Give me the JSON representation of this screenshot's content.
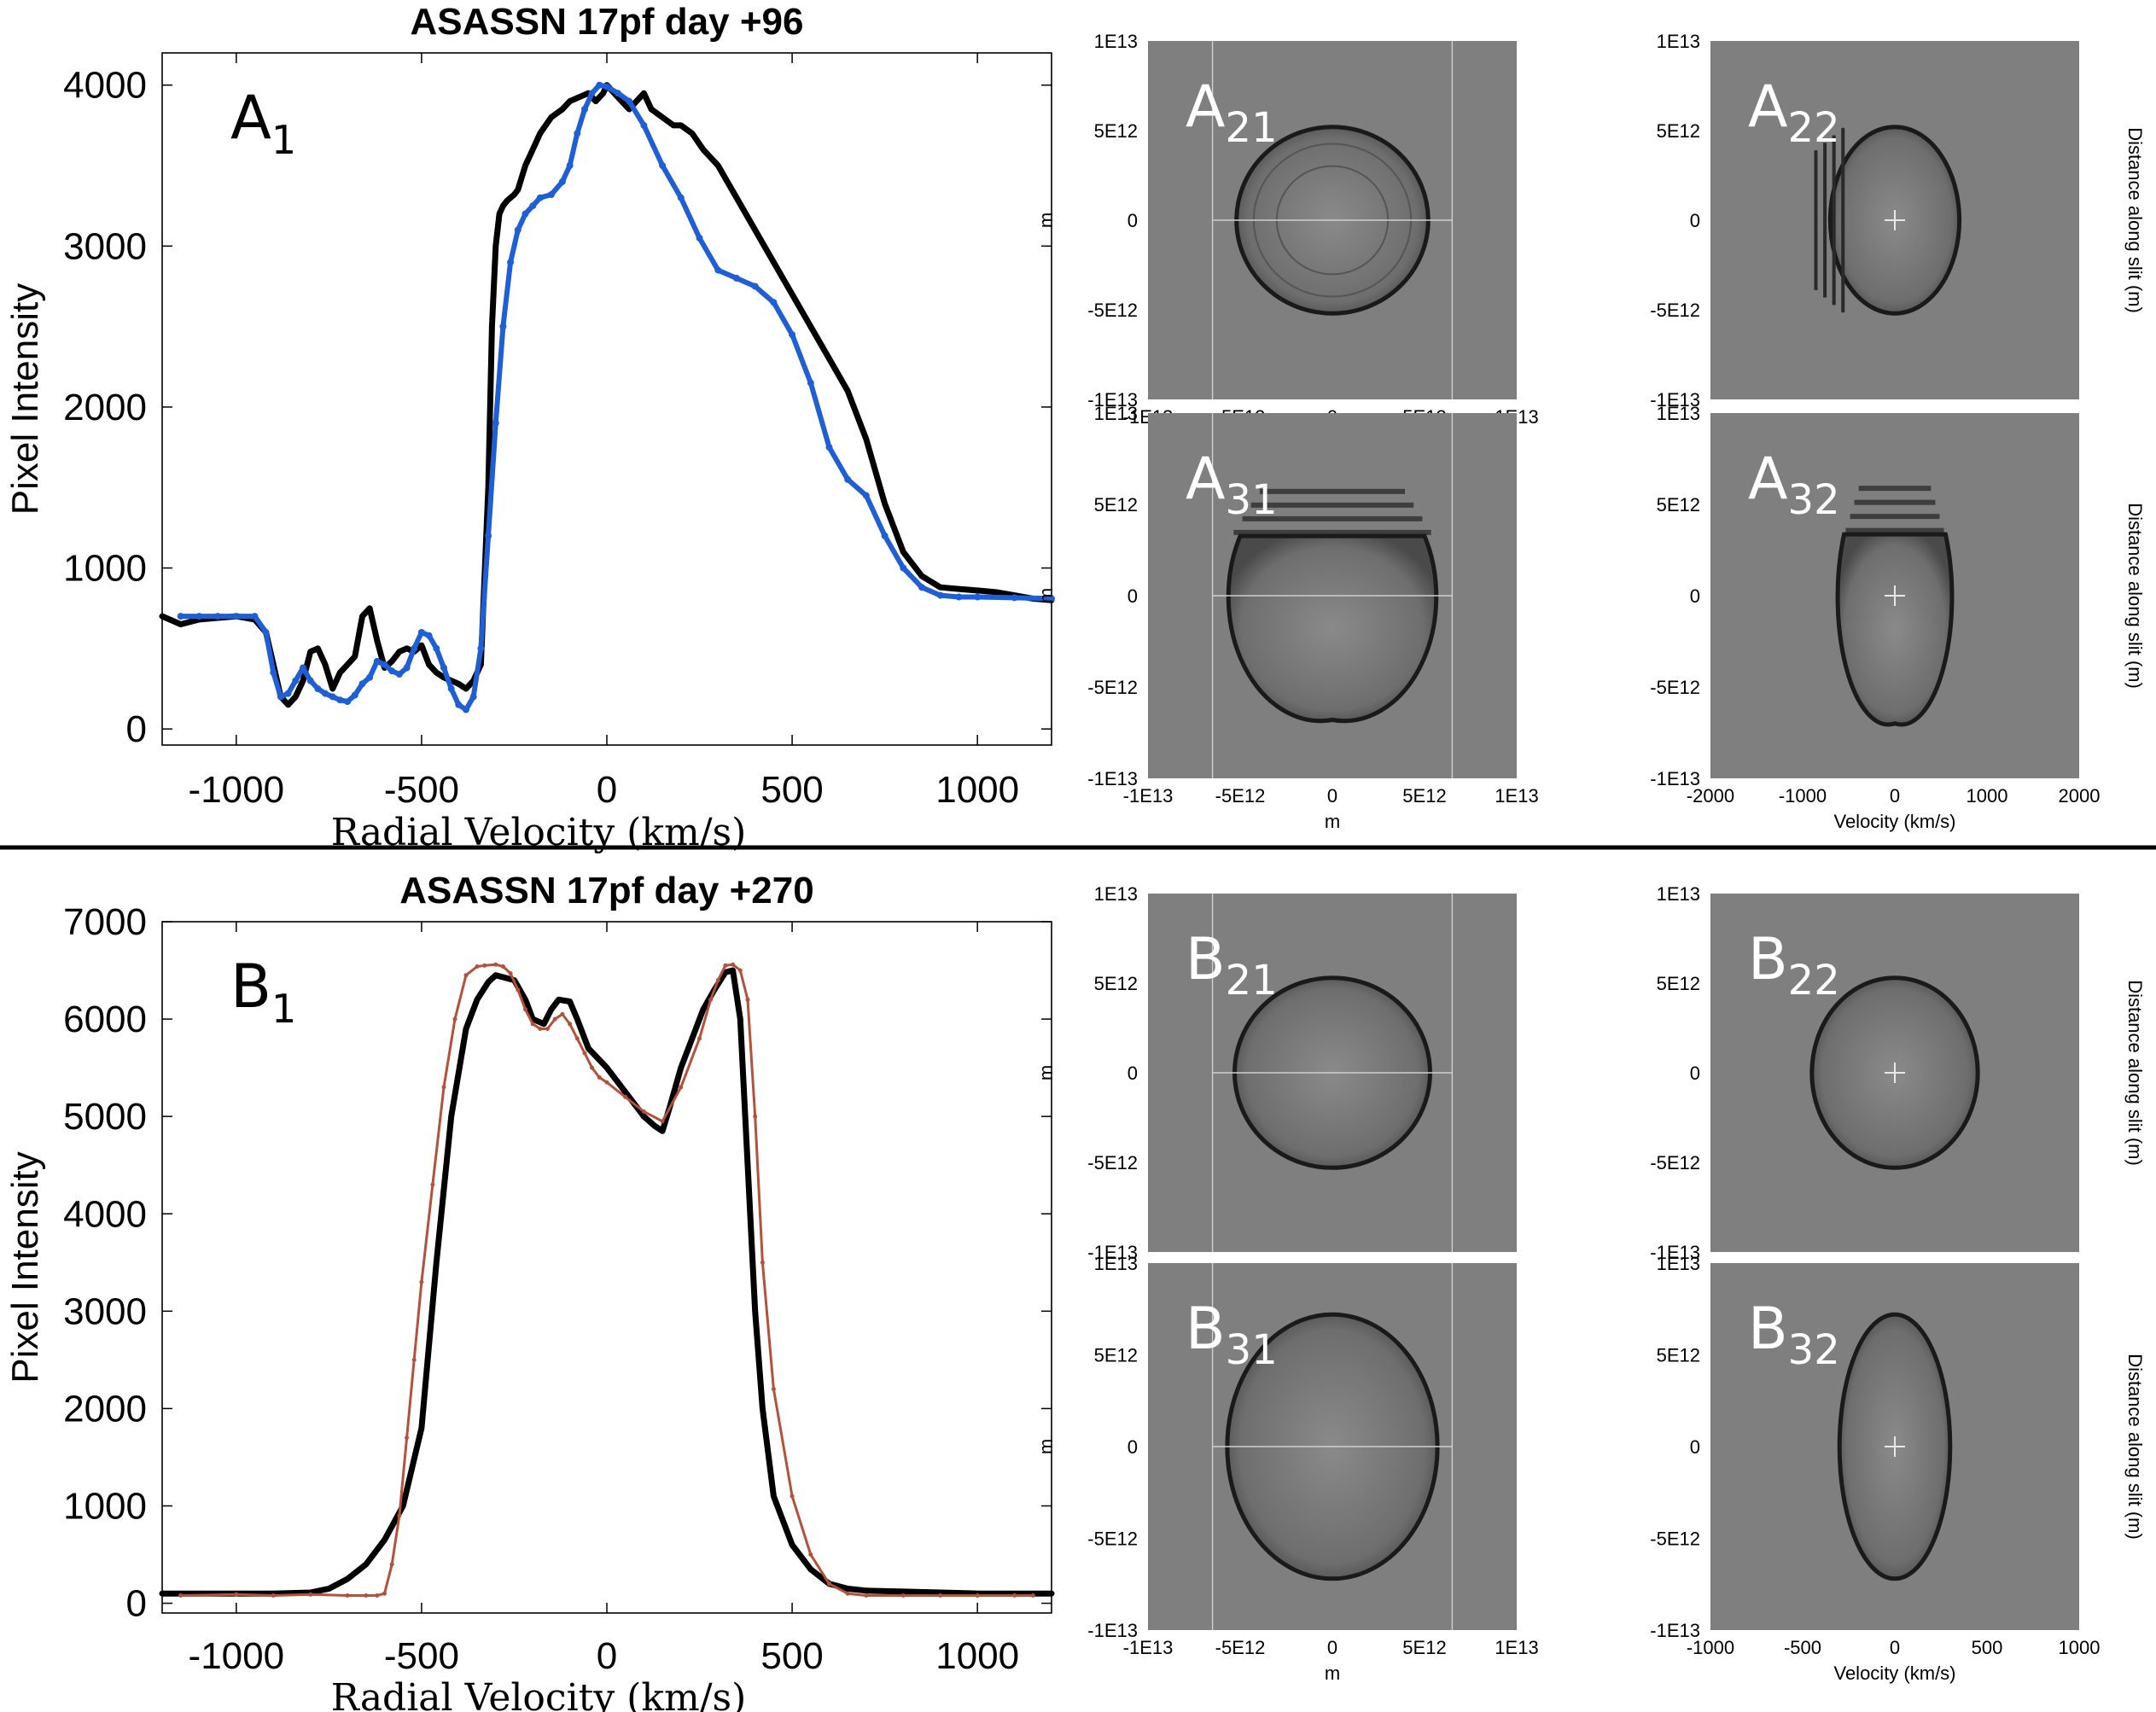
{
  "colors": {
    "black": "#000000",
    "blue": "#1f5fd6",
    "red": "#b5503a",
    "panel_gray": "#7f7f7f",
    "background": "#ffffff"
  },
  "chart_data": [
    {
      "id": "A1",
      "type": "line",
      "title": "ASASSN 17pf day +96",
      "panel_label": "A",
      "panel_sub": "1",
      "xlabel": "Radial Velocity (km/s)",
      "ylabel": "Pixel Intensity",
      "xlim": [
        -1200,
        1200
      ],
      "ylim": [
        -100,
        4200
      ],
      "xticks": [
        -1000,
        -500,
        0,
        500,
        1000
      ],
      "yticks": [
        0,
        1000,
        2000,
        3000,
        4000
      ],
      "series": [
        {
          "name": "observed",
          "color": "#000000",
          "x": [
            -1200,
            -1150,
            -1100,
            -1050,
            -1000,
            -950,
            -920,
            -900,
            -880,
            -860,
            -840,
            -820,
            -800,
            -780,
            -760,
            -740,
            -720,
            -700,
            -680,
            -660,
            -640,
            -620,
            -600,
            -580,
            -560,
            -540,
            -520,
            -500,
            -480,
            -460,
            -440,
            -420,
            -400,
            -380,
            -360,
            -340,
            -320,
            -310,
            -300,
            -290,
            -280,
            -270,
            -260,
            -250,
            -240,
            -220,
            -200,
            -180,
            -150,
            -120,
            -100,
            -80,
            -50,
            -30,
            -10,
            0,
            20,
            40,
            60,
            80,
            100,
            120,
            150,
            180,
            200,
            230,
            260,
            300,
            350,
            400,
            450,
            500,
            550,
            600,
            650,
            700,
            750,
            800,
            850,
            900,
            950,
            1000,
            1050,
            1100,
            1150,
            1200
          ],
          "y": [
            700,
            650,
            680,
            690,
            700,
            680,
            600,
            400,
            200,
            150,
            200,
            300,
            480,
            500,
            400,
            250,
            350,
            400,
            450,
            700,
            750,
            550,
            380,
            420,
            480,
            500,
            480,
            520,
            400,
            350,
            320,
            300,
            280,
            250,
            300,
            400,
            1500,
            2500,
            3000,
            3200,
            3250,
            3280,
            3300,
            3320,
            3350,
            3500,
            3600,
            3700,
            3800,
            3850,
            3900,
            3920,
            3950,
            3900,
            3950,
            4000,
            3950,
            3900,
            3850,
            3900,
            3950,
            3850,
            3800,
            3750,
            3750,
            3700,
            3600,
            3500,
            3300,
            3100,
            2900,
            2700,
            2500,
            2300,
            2100,
            1800,
            1400,
            1100,
            950,
            880,
            870,
            860,
            850,
            830,
            810,
            800
          ]
        },
        {
          "name": "model",
          "color": "#1f5fd6",
          "x": [
            -1150,
            -1100,
            -1050,
            -1000,
            -950,
            -920,
            -900,
            -880,
            -860,
            -840,
            -820,
            -800,
            -780,
            -760,
            -740,
            -720,
            -700,
            -680,
            -660,
            -640,
            -620,
            -600,
            -580,
            -560,
            -540,
            -520,
            -500,
            -480,
            -460,
            -440,
            -420,
            -400,
            -380,
            -360,
            -340,
            -320,
            -300,
            -280,
            -260,
            -240,
            -220,
            -200,
            -180,
            -150,
            -120,
            -100,
            -80,
            -60,
            -40,
            -20,
            0,
            30,
            60,
            100,
            150,
            200,
            250,
            300,
            350,
            400,
            450,
            500,
            550,
            600,
            650,
            700,
            750,
            800,
            850,
            900,
            950,
            1000,
            1100,
            1200
          ],
          "y": [
            700,
            700,
            700,
            700,
            700,
            600,
            350,
            200,
            220,
            300,
            380,
            300,
            250,
            220,
            200,
            180,
            170,
            210,
            280,
            320,
            420,
            400,
            360,
            340,
            380,
            500,
            600,
            580,
            500,
            380,
            250,
            150,
            120,
            200,
            500,
            1200,
            1900,
            2500,
            2900,
            3100,
            3200,
            3250,
            3300,
            3320,
            3400,
            3500,
            3700,
            3850,
            3950,
            4000,
            3990,
            3950,
            3900,
            3750,
            3500,
            3300,
            3050,
            2850,
            2800,
            2750,
            2650,
            2450,
            2150,
            1750,
            1550,
            1450,
            1200,
            1000,
            880,
            830,
            820,
            820,
            815,
            810
          ]
        }
      ]
    },
    {
      "id": "B1",
      "type": "line",
      "title": "ASASSN 17pf day +270",
      "panel_label": "B",
      "panel_sub": "1",
      "xlabel": "Radial Velocity (km/s)",
      "ylabel": "Pixel Intensity",
      "xlim": [
        -1200,
        1200
      ],
      "ylim": [
        -100,
        7000
      ],
      "xticks": [
        -1000,
        -500,
        0,
        500,
        1000
      ],
      "yticks": [
        0,
        1000,
        2000,
        3000,
        4000,
        5000,
        6000,
        7000
      ],
      "series": [
        {
          "name": "observed",
          "color": "#000000",
          "x": [
            -1200,
            -1100,
            -1000,
            -900,
            -800,
            -750,
            -700,
            -650,
            -600,
            -550,
            -500,
            -460,
            -420,
            -380,
            -350,
            -320,
            -300,
            -280,
            -250,
            -220,
            -200,
            -170,
            -150,
            -130,
            -100,
            -80,
            -50,
            0,
            50,
            100,
            130,
            150,
            170,
            200,
            230,
            260,
            290,
            320,
            340,
            360,
            380,
            400,
            420,
            450,
            500,
            550,
            600,
            650,
            700,
            800,
            900,
            1000,
            1100,
            1200
          ],
          "y": [
            100,
            100,
            100,
            100,
            110,
            150,
            250,
            400,
            650,
            1000,
            1800,
            3500,
            5000,
            5900,
            6200,
            6380,
            6450,
            6430,
            6400,
            6200,
            6000,
            5950,
            6100,
            6200,
            6180,
            6000,
            5700,
            5500,
            5250,
            5000,
            4900,
            4850,
            5100,
            5500,
            5800,
            6100,
            6300,
            6480,
            6500,
            6000,
            4500,
            3000,
            2000,
            1100,
            600,
            350,
            200,
            150,
            130,
            120,
            110,
            100,
            100,
            100
          ]
        },
        {
          "name": "model",
          "color": "#b5503a",
          "x": [
            -1150,
            -1000,
            -900,
            -800,
            -700,
            -650,
            -620,
            -600,
            -580,
            -560,
            -540,
            -520,
            -500,
            -470,
            -440,
            -410,
            -380,
            -350,
            -330,
            -300,
            -280,
            -260,
            -240,
            -220,
            -200,
            -180,
            -160,
            -140,
            -120,
            -100,
            -80,
            -60,
            -40,
            -20,
            0,
            50,
            100,
            150,
            200,
            250,
            280,
            300,
            320,
            340,
            360,
            380,
            400,
            420,
            450,
            500,
            550,
            600,
            650,
            700,
            800,
            900,
            1000,
            1100,
            1150
          ],
          "y": [
            80,
            90,
            80,
            90,
            80,
            80,
            80,
            100,
            400,
            900,
            1700,
            2500,
            3300,
            4300,
            5300,
            6000,
            6450,
            6540,
            6550,
            6560,
            6540,
            6470,
            6300,
            6100,
            5950,
            5900,
            5900,
            6000,
            6050,
            5950,
            5800,
            5650,
            5500,
            5400,
            5350,
            5200,
            5050,
            4950,
            5300,
            5800,
            6200,
            6400,
            6550,
            6560,
            6500,
            6200,
            5000,
            3500,
            2200,
            1100,
            500,
            200,
            100,
            80,
            80,
            80,
            80,
            80,
            80
          ]
        }
      ]
    },
    {
      "id": "A21",
      "type": "heatmap",
      "panel_label": "A",
      "panel_sub": "21",
      "shape": "circle",
      "center": [
        0,
        0
      ],
      "radius_x": 5200000000000.0,
      "radius_y": 5200000000000.0,
      "xlim": [
        -10000000000000.0,
        10000000000000.0
      ],
      "ylim": [
        -10000000000000.0,
        10000000000000.0
      ],
      "yticks": [
        "1E13",
        "5E12",
        "0",
        "-5E12",
        "-1E13"
      ],
      "ylabel": "m",
      "xticks": [
        "-1E13",
        "-5E12",
        "0",
        "5E12",
        "1E13"
      ],
      "xlabel": "m",
      "guides": true,
      "crosshair": false
    },
    {
      "id": "A22",
      "type": "heatmap",
      "panel_label": "A",
      "panel_sub": "22",
      "shape": "ellipse",
      "center": [
        0,
        0
      ],
      "radius_x": 700,
      "radius_y": 5200000000000.0,
      "xlim": [
        -2000,
        2000
      ],
      "ylim": [
        -10000000000000.0,
        10000000000000.0
      ],
      "yticks": [
        "1E13",
        "5E12",
        "0",
        "-5E12",
        "-1E13"
      ],
      "right_label": "Distance along slit (m)",
      "crosshair": true,
      "fringes_left": true
    },
    {
      "id": "A31",
      "type": "heatmap",
      "panel_label": "A",
      "panel_sub": "31",
      "shape": "cap",
      "center": [
        0,
        0
      ],
      "radius_x": 5000000000000.0,
      "radius_y": 6800000000000.0,
      "xlim": [
        -10000000000000.0,
        10000000000000.0
      ],
      "ylim": [
        -10000000000000.0,
        10000000000000.0
      ],
      "yticks": [
        "1E13",
        "5E12",
        "0",
        "-5E12",
        "-1E13"
      ],
      "ylabel": "m",
      "xticks": [
        "-1E13",
        "-5E12",
        "0",
        "5E12",
        "1E13"
      ],
      "xlabel": "m",
      "guides": true,
      "crosshair": false,
      "stripes_top": true
    },
    {
      "id": "A32",
      "type": "heatmap",
      "panel_label": "A",
      "panel_sub": "32",
      "shape": "cap",
      "center": [
        0,
        0
      ],
      "radius_x": 550,
      "radius_y": 7000000000000.0,
      "xlim": [
        -2000,
        2000
      ],
      "ylim": [
        -10000000000000.0,
        10000000000000.0
      ],
      "yticks": [
        "1E13",
        "5E12",
        "0",
        "-5E12",
        "-1E13"
      ],
      "xticks": [
        "-2000",
        "-1000",
        "0",
        "1000",
        "2000"
      ],
      "xlabel": "Velocity (km/s)",
      "right_label": "Distance along slit (m)",
      "crosshair": true,
      "stripes_top": true
    },
    {
      "id": "B21",
      "type": "heatmap",
      "panel_label": "B",
      "panel_sub": "21",
      "shape": "circle",
      "center": [
        0,
        0
      ],
      "radius_x": 5300000000000.0,
      "radius_y": 5300000000000.0,
      "xlim": [
        -10000000000000.0,
        10000000000000.0
      ],
      "ylim": [
        -10000000000000.0,
        10000000000000.0
      ],
      "yticks": [
        "1E13",
        "5E12",
        "0",
        "-5E12",
        "-1E13"
      ],
      "ylabel": "m",
      "guides": true,
      "crosshair": false
    },
    {
      "id": "B22",
      "type": "heatmap",
      "panel_label": "B",
      "panel_sub": "22",
      "shape": "ellipse",
      "center": [
        0,
        0
      ],
      "radius_x": 450,
      "radius_y": 5300000000000.0,
      "xlim": [
        -1000,
        1000
      ],
      "ylim": [
        -10000000000000.0,
        10000000000000.0
      ],
      "yticks": [
        "1E13",
        "5E12",
        "0",
        "-5E12",
        "-1E13"
      ],
      "right_label": "Distance along slit (m)",
      "crosshair": true
    },
    {
      "id": "B31",
      "type": "heatmap",
      "panel_label": "B",
      "panel_sub": "31",
      "shape": "ellipse",
      "center": [
        0,
        0
      ],
      "radius_x": 5700000000000.0,
      "radius_y": 7200000000000.0,
      "xlim": [
        -10000000000000.0,
        10000000000000.0
      ],
      "ylim": [
        -10000000000000.0,
        10000000000000.0
      ],
      "yticks": [
        "1E13",
        "5E12",
        "0",
        "-5E12",
        "-1E13"
      ],
      "ylabel": "m",
      "xticks": [
        "-1E13",
        "-5E12",
        "0",
        "5E12",
        "1E13"
      ],
      "xlabel": "m",
      "guides": true,
      "crosshair": false
    },
    {
      "id": "B32",
      "type": "heatmap",
      "panel_label": "B",
      "panel_sub": "32",
      "shape": "ellipse",
      "center": [
        0,
        0
      ],
      "radius_x": 300,
      "radius_y": 7200000000000.0,
      "xlim": [
        -1000,
        1000
      ],
      "ylim": [
        -10000000000000.0,
        10000000000000.0
      ],
      "yticks": [
        "1E13",
        "5E12",
        "0",
        "-5E12",
        "-1E13"
      ],
      "xticks": [
        "-1000",
        "-500",
        "0",
        "500",
        "1000"
      ],
      "xlabel": "Velocity (km/s)",
      "right_label": "Distance along slit (m)",
      "crosshair": true
    }
  ]
}
